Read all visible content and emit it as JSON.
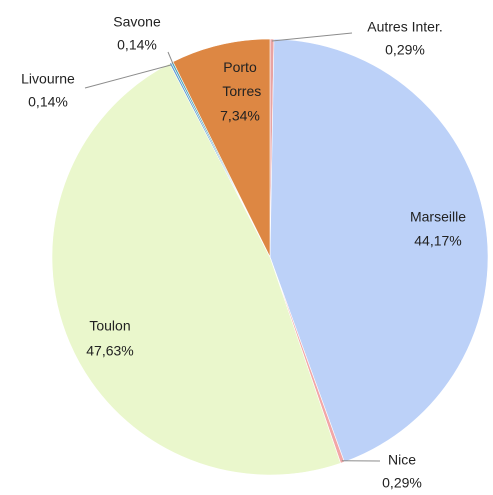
{
  "chart_data": {
    "type": "pie",
    "categories": [
      "Autres Inter.",
      "Marseille",
      "Nice",
      "Toulon",
      "Livourne",
      "Savone",
      "Porto Torres"
    ],
    "values": [
      0.29,
      44.17,
      0.29,
      47.63,
      0.14,
      0.14,
      7.34
    ],
    "value_labels": [
      "0,29%",
      "44,17%",
      "0,29%",
      "47,63%",
      "0,14%",
      "0,14%",
      "7,34%"
    ],
    "colors": [
      "#e9a3a3",
      "#bcd1f8",
      "#f2a7a7",
      "#eaf7cc",
      "#5b9bd5",
      "#4aa3b5",
      "#dd8743"
    ]
  }
}
